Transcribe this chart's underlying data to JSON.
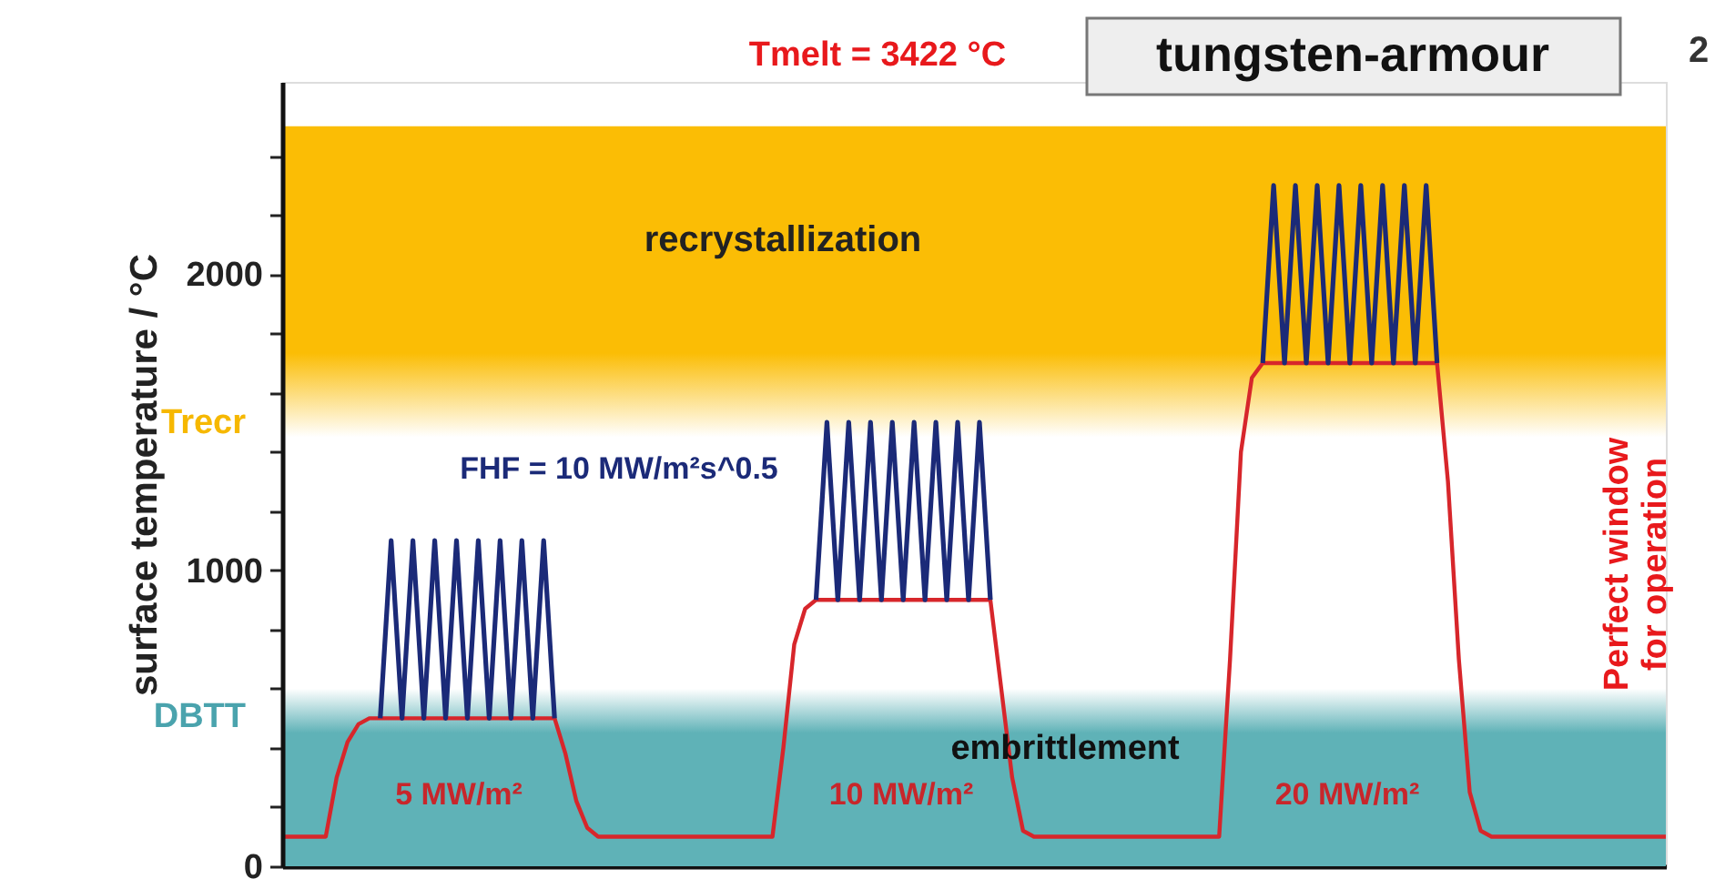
{
  "chart_data": {
    "type": "line",
    "title": "tungsten-armour",
    "subtitle": "Tmelt = 3422 °C",
    "ylabel": "surface temperature / °C",
    "categories": [
      null,
      null,
      null,
      null,
      null,
      null,
      null,
      null,
      null,
      null,
      null,
      null,
      null,
      null,
      null,
      null,
      null,
      null,
      null,
      null,
      null,
      null,
      null,
      null,
      null,
      null,
      null,
      null,
      null,
      null,
      null,
      null,
      null,
      null,
      null,
      null,
      null,
      null,
      null,
      null,
      null,
      null,
      null,
      null,
      null,
      null,
      null,
      null,
      null,
      null,
      null,
      null,
      null,
      null,
      null,
      null,
      null,
      null,
      null,
      null,
      null,
      null,
      null,
      null,
      null,
      null,
      null,
      null,
      null,
      null,
      null,
      null,
      null,
      null,
      null,
      null,
      null,
      null,
      null,
      null,
      null,
      null,
      null,
      null,
      null,
      null,
      null,
      null,
      null,
      null,
      null,
      null,
      null,
      null,
      null,
      null,
      null,
      null,
      null,
      null,
      null,
      null,
      null,
      null,
      null,
      null,
      null,
      null,
      null,
      null,
      null,
      null,
      null,
      null,
      null,
      null,
      null,
      null,
      null,
      null,
      null,
      null,
      null,
      null,
      null,
      null,
      null,
      null
    ],
    "series": [
      {
        "color": "#d7262b",
        "values": [
          100,
          100,
          100,
          100,
          100,
          300,
          420,
          480,
          500,
          500,
          500,
          500,
          500,
          500,
          500,
          500,
          500,
          500,
          500,
          500,
          500,
          500,
          500,
          500,
          500,
          500,
          380,
          220,
          130,
          100,
          100,
          100,
          100,
          100,
          100,
          100,
          100,
          100,
          100,
          100,
          100,
          100,
          100,
          100,
          100,
          100,
          400,
          750,
          870,
          900,
          900,
          900,
          900,
          900,
          900,
          900,
          900,
          900,
          900,
          900,
          900,
          900,
          900,
          900,
          900,
          900,
          600,
          300,
          120,
          100,
          100,
          100,
          100,
          100,
          100,
          100,
          100,
          100,
          100,
          100,
          100,
          100,
          100,
          100,
          100,
          100,
          100,
          700,
          1400,
          1650,
          1700,
          1700,
          1700,
          1700,
          1700,
          1700,
          1700,
          1700,
          1700,
          1700,
          1700,
          1700,
          1700,
          1700,
          1700,
          1700,
          1700,
          1300,
          700,
          250,
          120,
          100,
          100,
          100,
          100,
          100,
          100,
          100,
          100,
          100,
          100,
          100,
          100,
          100,
          100,
          100,
          100,
          100
        ]
      },
      {
        "color": "#1b2a78",
        "values": [
          null,
          null,
          null,
          null,
          null,
          null,
          null,
          null,
          null,
          500,
          1100,
          500,
          1100,
          500,
          1100,
          500,
          1100,
          500,
          1100,
          500,
          1100,
          500,
          1100,
          500,
          1100,
          500,
          null,
          null,
          null,
          null,
          null,
          null,
          null,
          null,
          null,
          null,
          null,
          null,
          null,
          null,
          null,
          null,
          null,
          null,
          null,
          null,
          null,
          null,
          null,
          900,
          1500,
          900,
          1500,
          900,
          1500,
          900,
          1500,
          900,
          1500,
          900,
          1500,
          900,
          1500,
          900,
          1500,
          900,
          null,
          null,
          null,
          null,
          null,
          null,
          null,
          null,
          null,
          null,
          null,
          null,
          null,
          null,
          null,
          null,
          null,
          null,
          null,
          null,
          null,
          null,
          null,
          null,
          1700,
          2300,
          1700,
          2300,
          1700,
          2300,
          1700,
          2300,
          1700,
          2300,
          1700,
          2300,
          1700,
          2300,
          1700,
          2300,
          1700,
          null,
          null,
          null,
          null,
          null,
          null,
          null,
          null,
          null,
          null,
          null,
          null,
          null,
          null,
          null,
          null,
          null,
          null,
          null,
          null,
          null
        ]
      }
    ],
    "ylim": [
      0,
      2650
    ],
    "yticks": [
      0,
      {
        "value": 200,
        "label": null
      },
      {
        "value": 400,
        "label": null
      },
      {
        "value": 600,
        "label": null
      },
      {
        "value": 800,
        "label": null
      },
      1000,
      {
        "value": 1200,
        "label": null
      },
      {
        "value": 1400,
        "label": null
      },
      {
        "value": 1600,
        "label": null
      },
      {
        "value": 1800,
        "label": null
      },
      2000,
      {
        "value": 2200,
        "label": null
      },
      {
        "value": 2400,
        "label": null
      }
    ],
    "bands": [
      {
        "axis": "y",
        "from": 0,
        "to": 600,
        "label": "DBTT",
        "color": "#5fb2b7"
      },
      {
        "axis": "y",
        "from": 1450,
        "to": 2500,
        "label": "Trecr",
        "color": "#fbbd05"
      }
    ],
    "annotations": [
      "recrystallization",
      "embrittlement",
      "5 MW/m²",
      "10 MW/m²",
      "20 MW/m²",
      "FHF = 10 MW/m²s^0.5",
      "Perfect window\nfor operation",
      "2"
    ],
    "tick_labels": "y",
    "grid": false,
    "line_style": "solid",
    "marker": "none"
  }
}
